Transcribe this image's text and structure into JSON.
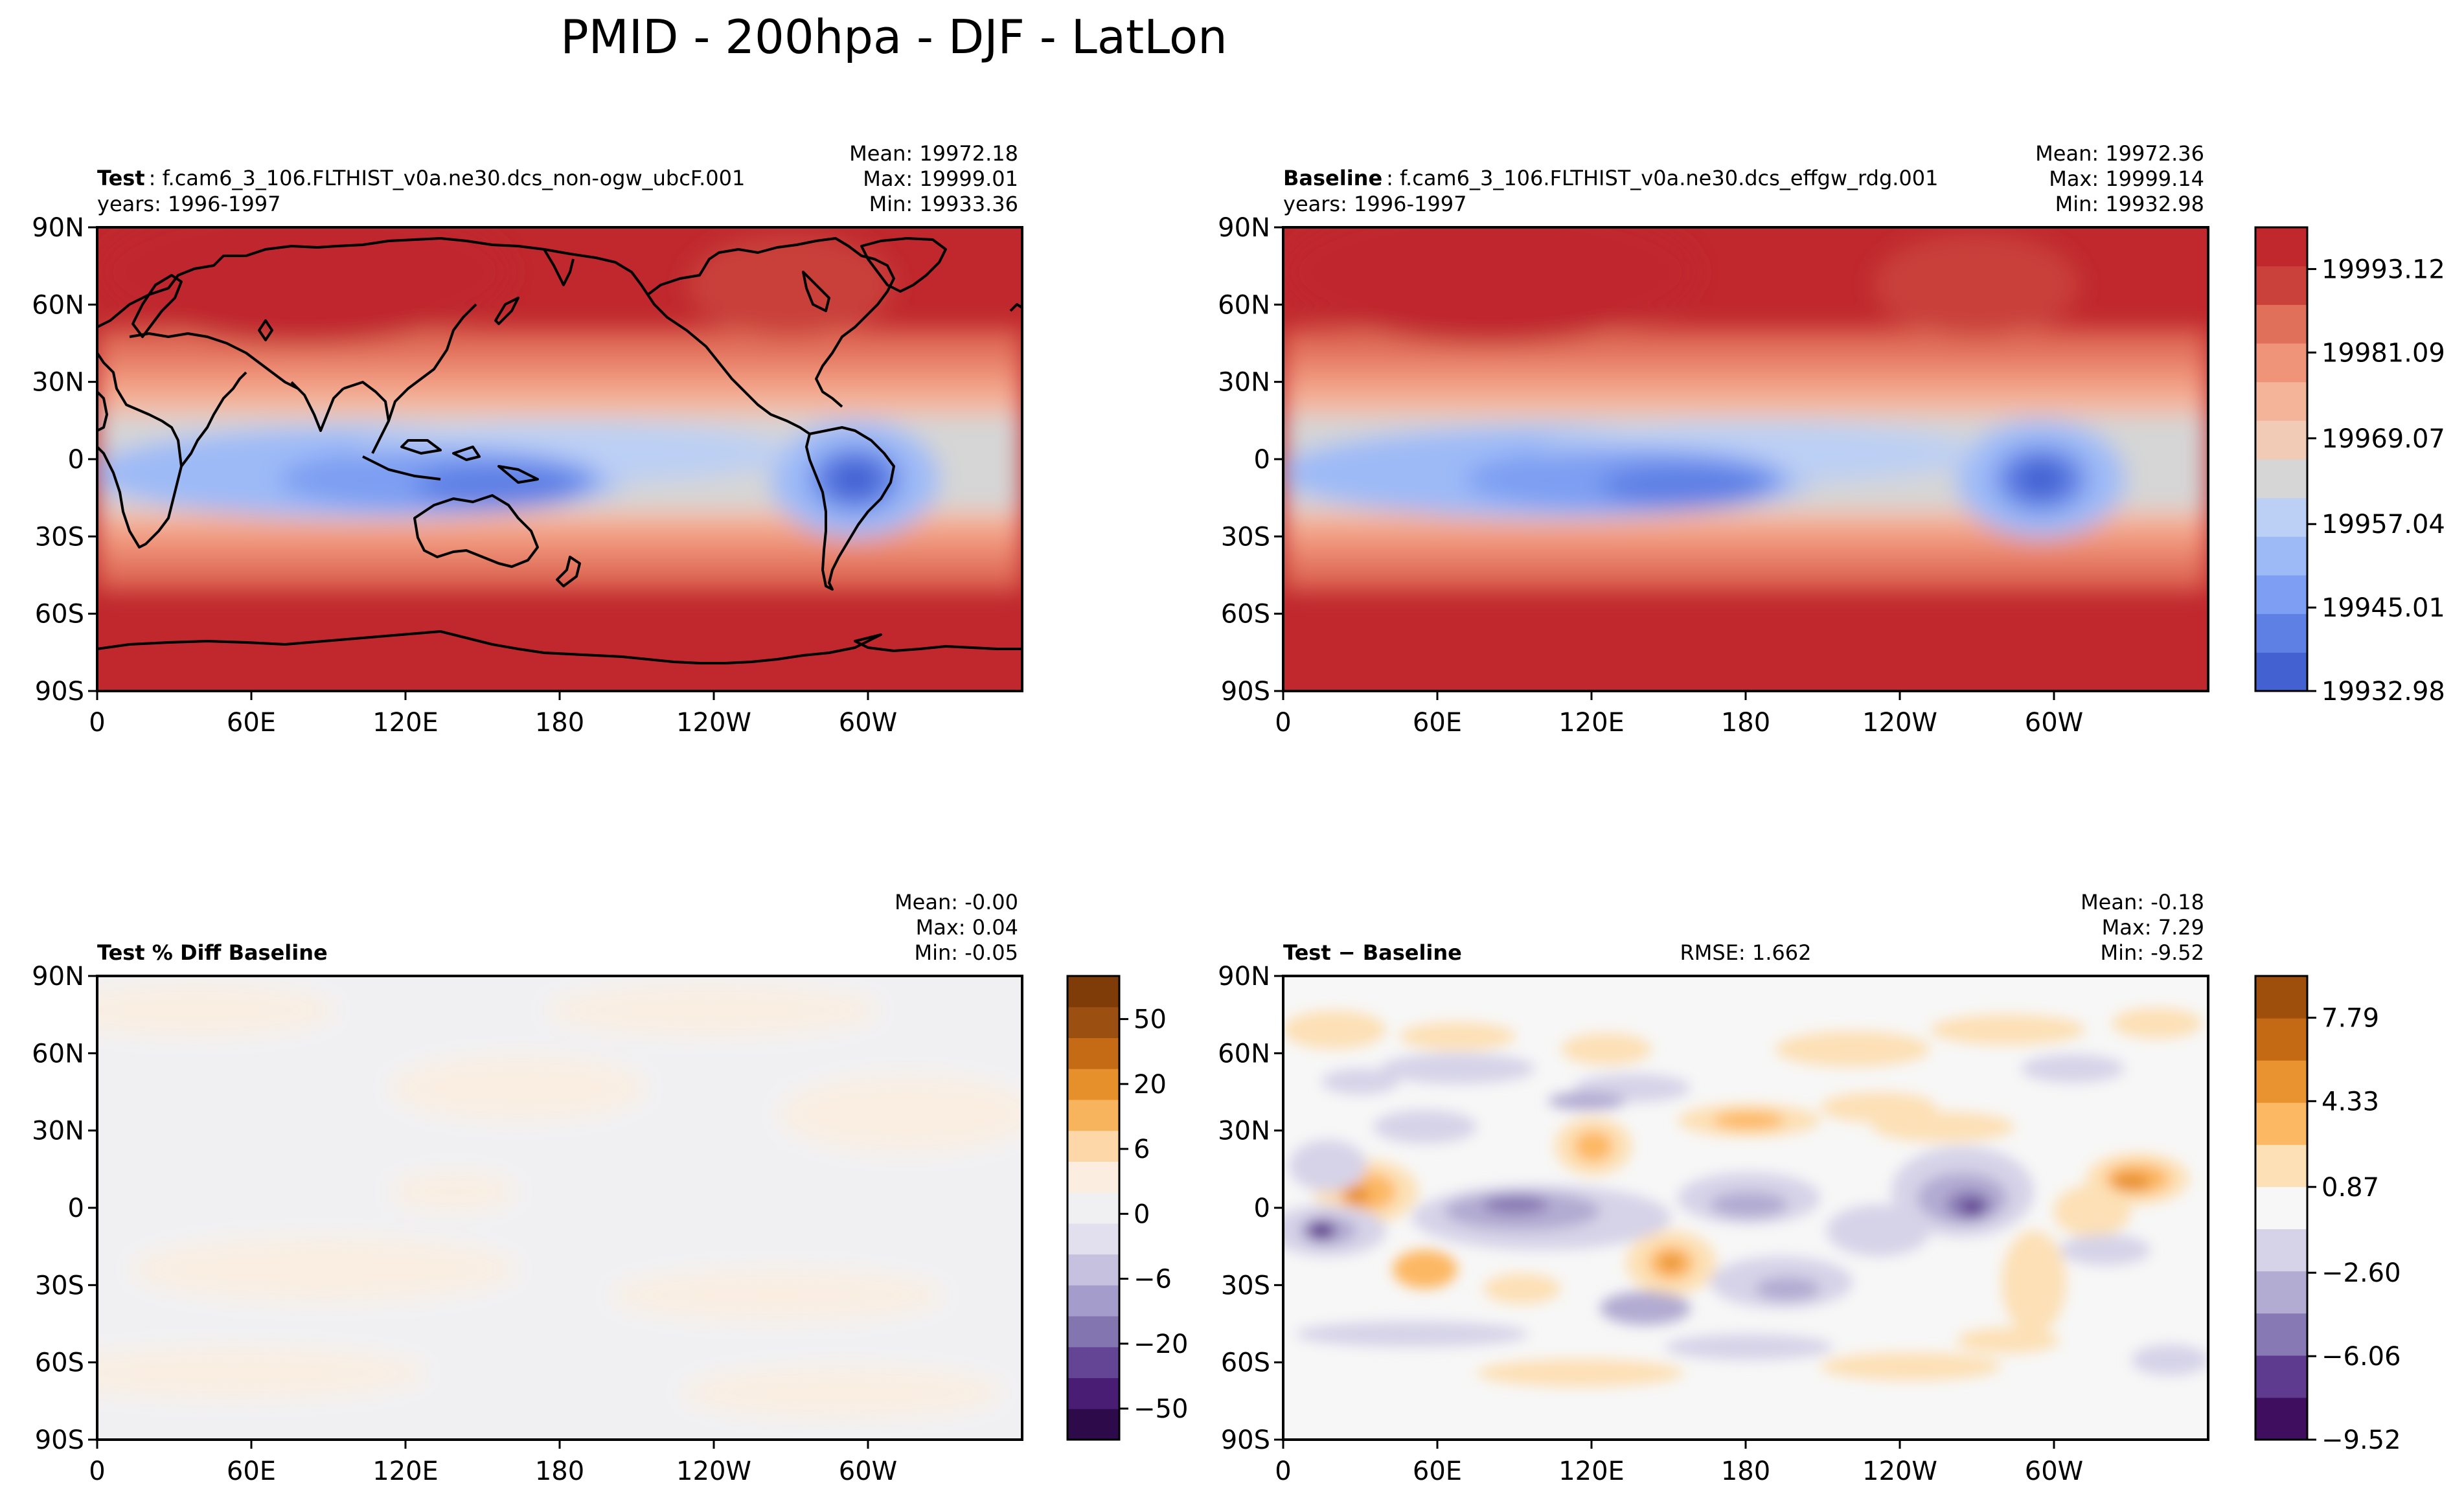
{
  "figure": {
    "title": "PMID - 200hpa - DJF - LatLon"
  },
  "axis_ticks": {
    "lat": [
      "90N",
      "60N",
      "30N",
      "0",
      "30S",
      "60S",
      "90S"
    ],
    "lon": [
      "0",
      "60E",
      "120E",
      "180",
      "120W",
      "60W"
    ]
  },
  "panels": [
    {
      "id": "test",
      "case_label": "Test",
      "case_name": "f.cam6_3_106.FLTHIST_v0a.ne30.dcs_non-ogw_ubcF.001",
      "years": "years: 1996-1997",
      "stats": [
        "Mean: 19972.18",
        "Max: 19999.01",
        "Min: 19933.36"
      ]
    },
    {
      "id": "baseline",
      "case_label": "Baseline",
      "case_name": "f.cam6_3_106.FLTHIST_v0a.ne30.dcs_effgw_rdg.001",
      "years": "years: 1996-1997",
      "stats": [
        "Mean: 19972.36",
        "Max: 19999.14",
        "Min: 19932.98"
      ]
    },
    {
      "id": "pctdiff",
      "case_label": "Test % Diff Baseline",
      "stats": [
        "Mean: -0.00",
        "Max:  0.04",
        "Min: -0.05"
      ]
    },
    {
      "id": "diff",
      "case_label": "Test − Baseline",
      "rmse": "RMSE: 1.662",
      "stats": [
        "Mean: -0.18",
        "Max:  7.29",
        "Min: -9.52"
      ]
    }
  ],
  "colorbars": {
    "field": {
      "labels": [
        "19993.12",
        "19981.09",
        "19969.07",
        "19957.04",
        "19945.01",
        "19932.98"
      ],
      "colors": [
        "#4361d1",
        "#5e80e5",
        "#7d9ef2",
        "#9dbaf7",
        "#bccff4",
        "#d6d6d6",
        "#f2cbb7",
        "#f4b49a",
        "#ef9379",
        "#e1705a",
        "#c9413a",
        "#c0282d"
      ]
    },
    "pct": {
      "labels": [
        "50",
        "20",
        "6",
        "0",
        "−6",
        "−20",
        "−50"
      ],
      "colors": [
        "#2d0a4a",
        "#4a1d74",
        "#644595",
        "#8275b0",
        "#a49cca",
        "#c5c1de",
        "#e2e0ee",
        "#f0f0f3",
        "#fbeee0",
        "#fdd7a8",
        "#f8b45d",
        "#e5902a",
        "#c56b15",
        "#9b5011",
        "#7f3b08"
      ]
    },
    "diff": {
      "labels": [
        "7.79",
        "4.33",
        "0.87",
        "−2.60",
        "−6.06",
        "−9.52"
      ],
      "colors": [
        "#3f0e5e",
        "#5f3b8f",
        "#8779b3",
        "#b2abd2",
        "#d6d3e8",
        "#f7f7f7",
        "#fde0b6",
        "#fdb863",
        "#e99230",
        "#c46a14",
        "#9e4f0b"
      ]
    }
  },
  "chart_data": [
    {
      "type": "heatmap",
      "title": "Test",
      "subtitle": "f.cam6_3_106.FLTHIST_v0a.ne30.dcs_non-ogw_ubcF.001",
      "xlabel": "",
      "ylabel": "",
      "x_ticks": [
        "0",
        "60E",
        "120E",
        "180",
        "120W",
        "60W"
      ],
      "y_ticks": [
        "90N",
        "60N",
        "30N",
        "0",
        "30S",
        "60S",
        "90S"
      ],
      "mean": 19972.18,
      "max": 19999.01,
      "min": 19933.36,
      "colorbar_range": [
        19932.98,
        19999.14
      ]
    },
    {
      "type": "heatmap",
      "title": "Baseline",
      "subtitle": "f.cam6_3_106.FLTHIST_v0a.ne30.dcs_effgw_rdg.001",
      "xlabel": "",
      "ylabel": "",
      "x_ticks": [
        "0",
        "60E",
        "120E",
        "180",
        "120W",
        "60W"
      ],
      "y_ticks": [
        "90N",
        "60N",
        "30N",
        "0",
        "30S",
        "60S",
        "90S"
      ],
      "mean": 19972.36,
      "max": 19999.14,
      "min": 19932.98,
      "colorbar_ticks": [
        19993.12,
        19981.09,
        19969.07,
        19957.04,
        19945.01,
        19932.98
      ]
    },
    {
      "type": "heatmap",
      "title": "Test % Diff Baseline",
      "xlabel": "",
      "ylabel": "",
      "mean": -0.0,
      "max": 0.04,
      "min": -0.05,
      "colorbar_ticks": [
        50,
        20,
        6,
        0,
        -6,
        -20,
        -50
      ]
    },
    {
      "type": "heatmap",
      "title": "Test − Baseline",
      "xlabel": "",
      "ylabel": "",
      "rmse": 1.662,
      "mean": -0.18,
      "max": 7.29,
      "min": -9.52,
      "colorbar_ticks": [
        7.79,
        4.33,
        0.87,
        -2.6,
        -6.06,
        -9.52
      ]
    }
  ]
}
